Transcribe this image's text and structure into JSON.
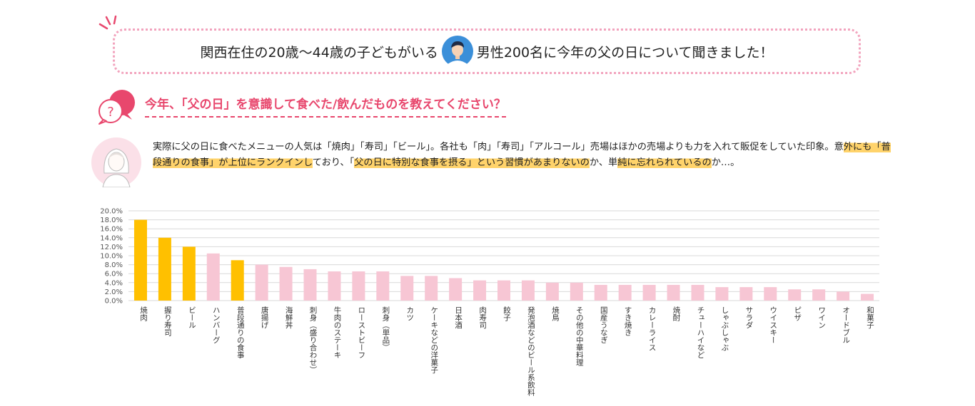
{
  "banner": {
    "text_before": "関西在住の20歳〜44歳の子どもがいる",
    "text_after": "男性200名に今年の父の日について聞きました！"
  },
  "question": "今年、「父の日」を意識して食べた/飲んだものを教えてください？",
  "comment": {
    "segments": [
      {
        "text": "実際に父の日に食べたメニューの人気は「焼肉」「寿司」「ビール」。各社も「肉」「寿司」「アルコール」売場はほかの売場よりも力を入れて販促をしていた印象。意",
        "hl": false
      },
      {
        "text": "外にも「普段通りの食事」が上位にランクインし",
        "hl": true
      },
      {
        "text": "ており、「",
        "hl": false
      },
      {
        "text": "父の日に特別な食事を摂る」という習慣があまりないの",
        "hl": true
      },
      {
        "text": "か、単",
        "hl": false
      },
      {
        "text": "純に忘れられているの",
        "hl": true
      },
      {
        "text": "か…。",
        "hl": false
      }
    ]
  },
  "chart_data": {
    "type": "bar",
    "ylim": [
      0,
      20
    ],
    "y_ticks": [
      "0.0%",
      "2.0%",
      "4.0%",
      "6.0%",
      "8.0%",
      "10.0%",
      "12.0%",
      "14.0%",
      "16.0%",
      "18.0%",
      "20.0%"
    ],
    "grid": true,
    "categories": [
      "焼肉",
      "握り寿司",
      "ビール",
      "ハンバーグ",
      "普段通りの食事",
      "唐揚げ",
      "海鮮丼",
      "刺身（盛り合わせ）",
      "牛肉のステーキ",
      "ローストビーフ",
      "刺身（単品）",
      "カツ",
      "ケーキなどの洋菓子",
      "日本酒",
      "肉寿司",
      "餃子",
      "発泡酒などのビール系飲料",
      "焼鳥",
      "その他の中華料理",
      "国産うなぎ",
      "すき焼き",
      "カレーライス",
      "焼酎",
      "チューハイなど",
      "しゃぶしゃぶ",
      "サラダ",
      "ウイスキー",
      "ピザ",
      "ワイン",
      "オードブル",
      "和菓子"
    ],
    "values": [
      18.0,
      14.0,
      12.0,
      10.5,
      9.0,
      8.0,
      7.5,
      7.0,
      6.5,
      6.5,
      6.5,
      5.5,
      5.5,
      5.0,
      4.5,
      4.5,
      4.5,
      4.0,
      4.0,
      3.5,
      3.5,
      3.5,
      3.5,
      3.5,
      3.0,
      3.0,
      3.0,
      2.5,
      2.5,
      2.0,
      1.5
    ],
    "highlight_indices": [
      0,
      1,
      2,
      4
    ],
    "colors": {
      "highlight": "#ffc000",
      "normal": "#f7c6d4",
      "grid": "#d9d9d9",
      "tick_text": "#555555"
    }
  }
}
